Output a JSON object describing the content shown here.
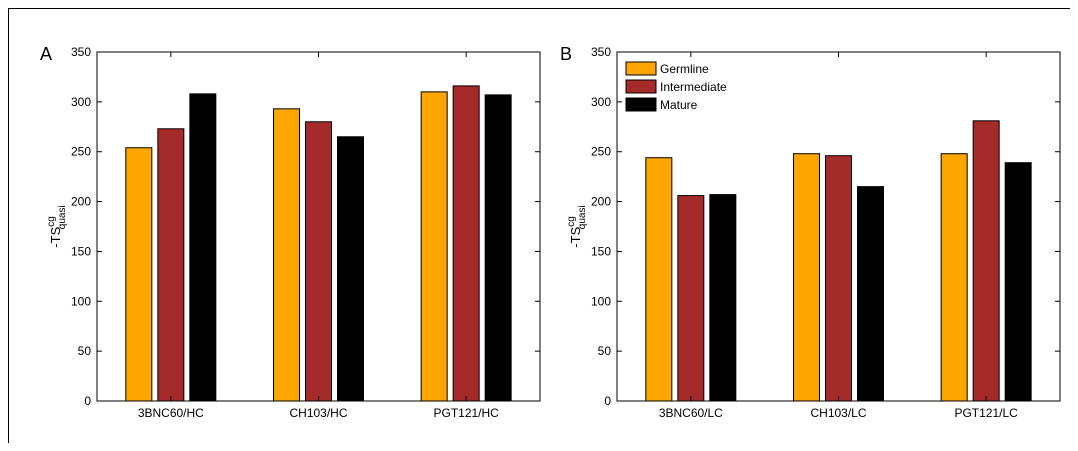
{
  "colors": {
    "germline": "#FFA500",
    "intermediate": "#A52A2A",
    "mature": "#000000"
  },
  "chart_data": [
    {
      "panel_label": "A",
      "type": "bar",
      "categories": [
        "3BNC60/HC",
        "CH103/HC",
        "PGT121/HC"
      ],
      "series": [
        {
          "name": "Germline",
          "values": [
            254,
            293,
            310
          ]
        },
        {
          "name": "Intermediate",
          "values": [
            273,
            280,
            316
          ]
        },
        {
          "name": "Mature",
          "values": [
            308,
            265,
            307
          ]
        }
      ],
      "ylabel": {
        "main": "-TS",
        "sup": "cg",
        "sub": "quasi"
      },
      "ylim": [
        0,
        350
      ],
      "yticks": [
        0,
        50,
        100,
        150,
        200,
        250,
        300,
        350
      ],
      "legend": false
    },
    {
      "panel_label": "B",
      "type": "bar",
      "categories": [
        "3BNC60/LC",
        "CH103/LC",
        "PGT121/LC"
      ],
      "series": [
        {
          "name": "Germline",
          "values": [
            244,
            248,
            248
          ]
        },
        {
          "name": "Intermediate",
          "values": [
            206,
            246,
            281
          ]
        },
        {
          "name": "Mature",
          "values": [
            207,
            215,
            239
          ]
        }
      ],
      "ylabel": {
        "main": "-TS",
        "sup": "cg",
        "sub": "quasi"
      },
      "ylim": [
        0,
        350
      ],
      "yticks": [
        0,
        50,
        100,
        150,
        200,
        250,
        300,
        350
      ],
      "legend": "top-left"
    }
  ]
}
